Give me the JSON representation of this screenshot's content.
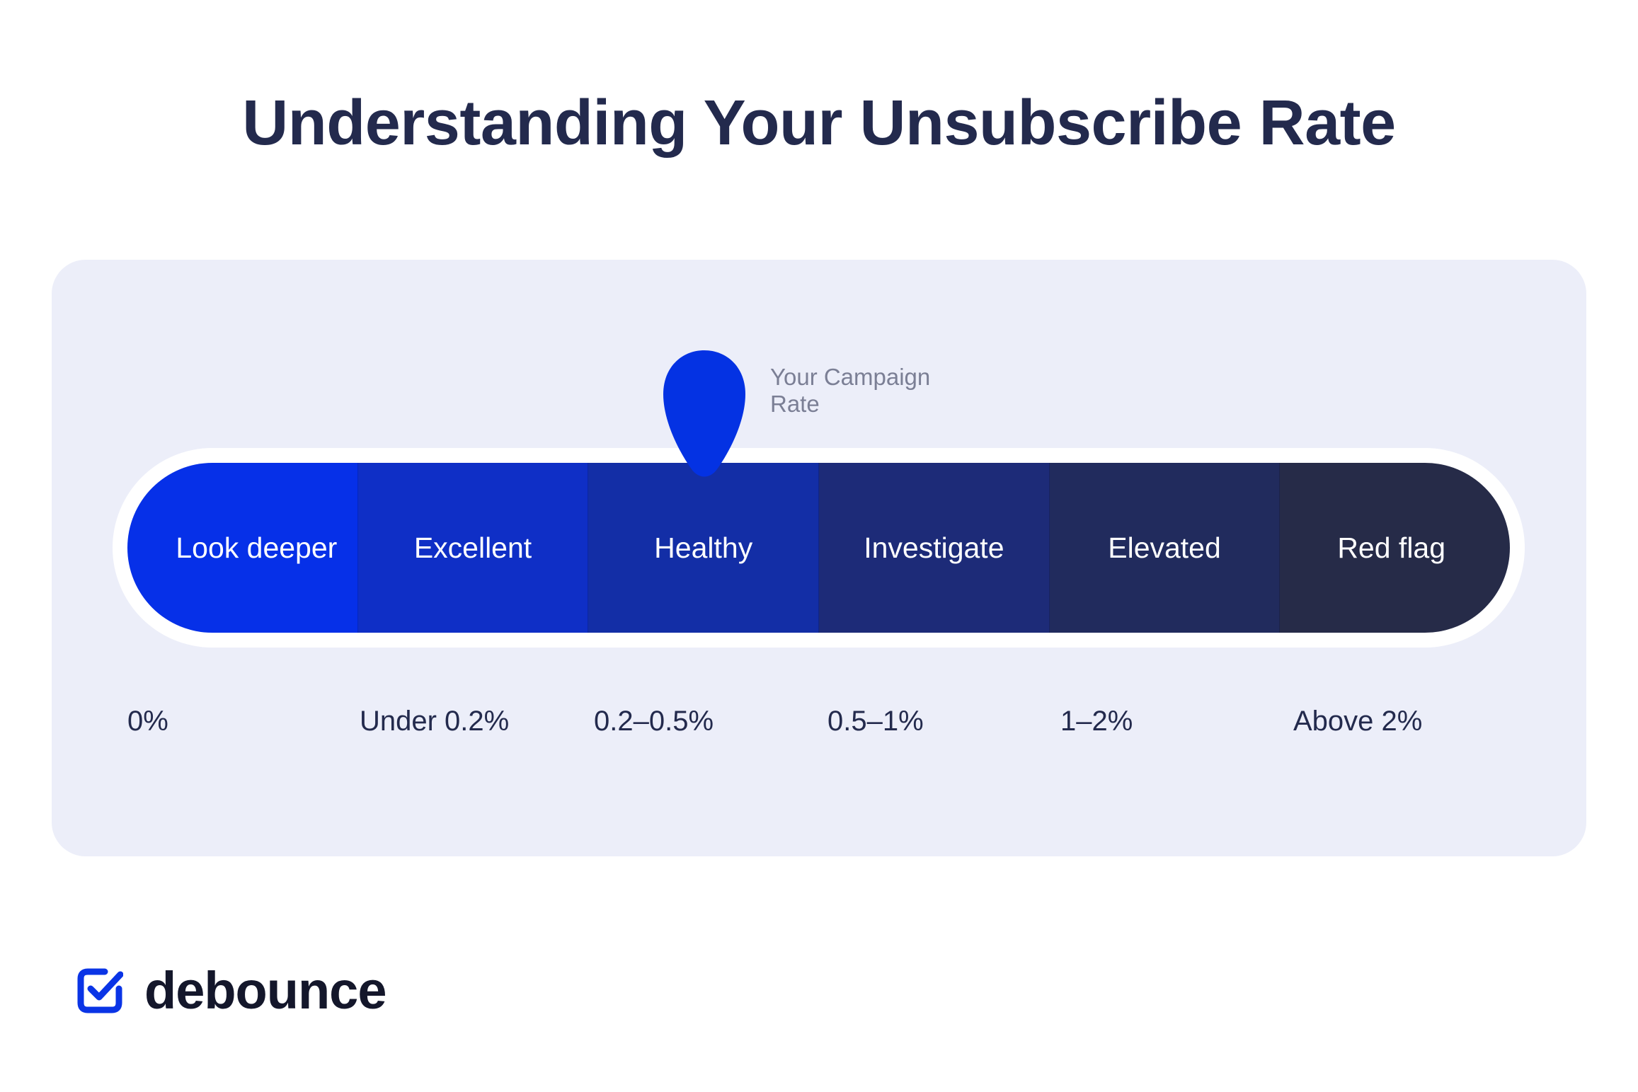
{
  "title": "Understanding Your Unsubscribe Rate",
  "marker": {
    "label_line1": "Your Campaign",
    "label_line2": "Rate",
    "position_segment": "Healthy",
    "color": "#0432e3"
  },
  "segments": [
    {
      "label": "Look deeper",
      "range": "0%",
      "color": "#0630e8"
    },
    {
      "label": "Excellent",
      "range": "Under 0.2%",
      "color": "#0f2fc6"
    },
    {
      "label": "Healthy",
      "range": "0.2–0.5%",
      "color": "#132ea6"
    },
    {
      "label": "Investigate",
      "range": "0.5–1%",
      "color": "#1d2b78"
    },
    {
      "label": "Elevated",
      "range": "1–2%",
      "color": "#212b5d"
    },
    {
      "label": "Red flag",
      "range": "Above 2%",
      "color": "#262b48"
    }
  ],
  "brand": {
    "name": "debounce",
    "icon": "check-square-icon",
    "color": "#0a34e6"
  }
}
